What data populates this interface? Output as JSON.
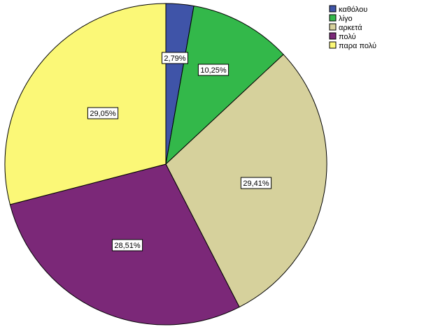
{
  "chart_data": {
    "type": "pie",
    "title": "",
    "categories": [
      "καθόλου",
      "λίγο",
      "αρκετά",
      "πολύ",
      "παρα πολύ"
    ],
    "values": [
      2.79,
      10.25,
      29.41,
      28.51,
      29.05
    ],
    "labels": [
      "2,79%",
      "10,25%",
      "29,41%",
      "28,51%",
      "29,05%"
    ],
    "colors": [
      "#3f54a8",
      "#33b84a",
      "#d6d19c",
      "#7b2878",
      "#fbf877"
    ],
    "start": "12 o'clock",
    "direction": "clockwise",
    "legend": {
      "position": "top-right",
      "items": [
        "καθόλου",
        "λίγο",
        "αρκετά",
        "πολύ",
        "παρα πολύ"
      ]
    }
  }
}
